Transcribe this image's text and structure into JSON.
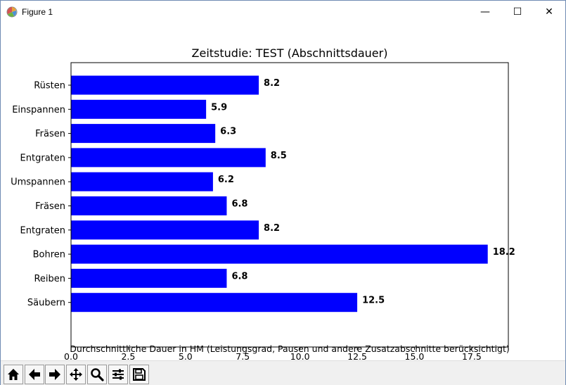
{
  "window": {
    "title": "Figure 1",
    "app_icon": "matplotlib-icon",
    "controls": [
      {
        "name": "minimize-button",
        "icon": "minimize-icon",
        "glyph": "—"
      },
      {
        "name": "maximize-button",
        "icon": "maximize-icon",
        "glyph": "☐"
      },
      {
        "name": "close-button",
        "icon": "close-icon",
        "glyph": "✕"
      }
    ]
  },
  "chart_data": {
    "type": "bar",
    "orientation": "horizontal",
    "title": "Zeitstudie: TEST (Abschnittsdauer)",
    "xlabel": "Durchschnittliche Dauer in HM (Leistungsgrad, Pausen und andere Zusatzabschnitte berücksichtigt)",
    "ylabel": "",
    "categories": [
      "Rüsten",
      "Einspannen",
      "Fräsen",
      "Entgraten",
      "Umspannen",
      "Fräsen",
      "Entgraten",
      "Bohren",
      "Reiben",
      "Säubern"
    ],
    "values": [
      8.2,
      5.9,
      6.3,
      8.5,
      6.2,
      6.8,
      8.2,
      18.2,
      6.8,
      12.5
    ],
    "value_labels": [
      "8.2",
      "5.9",
      "6.3",
      "8.5",
      "6.2",
      "6.8",
      "8.2",
      "18.2",
      "6.8",
      "12.5"
    ],
    "xlim": [
      0,
      19.1
    ],
    "xticks": [
      0,
      2.5,
      5,
      7.5,
      10,
      12.5,
      15,
      17.5
    ],
    "xtick_labels": [
      "0.0",
      "2.5",
      "5.0",
      "7.5",
      "10.0",
      "12.5",
      "15.0",
      "17.5"
    ],
    "bar_color": "#0000ff",
    "label_color": "#000000",
    "grid": false,
    "legend": "none"
  },
  "toolbar": {
    "tools": [
      {
        "name": "home-button",
        "icon": "home-icon"
      },
      {
        "name": "back-button",
        "icon": "back-arrow-icon"
      },
      {
        "name": "forward-button",
        "icon": "forward-arrow-icon"
      },
      {
        "name": "pan-button",
        "icon": "pan-move-icon"
      },
      {
        "name": "zoom-button",
        "icon": "zoom-magnifier-icon"
      },
      {
        "name": "configure-subplots-button",
        "icon": "sliders-icon"
      },
      {
        "name": "save-button",
        "icon": "save-disk-icon"
      }
    ]
  }
}
